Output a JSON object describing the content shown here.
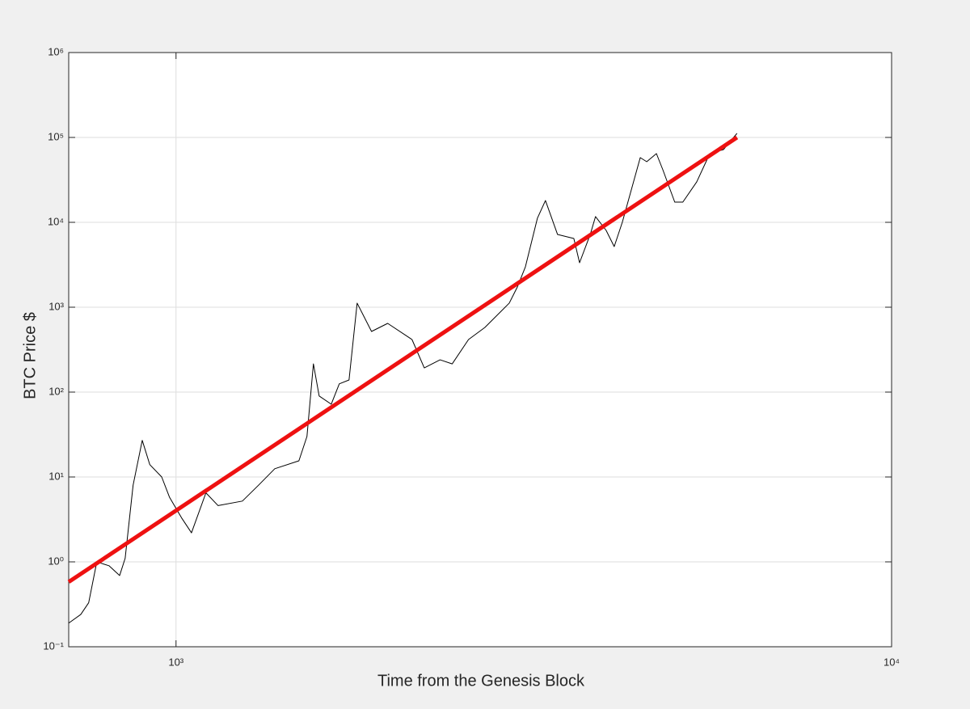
{
  "chart_data": {
    "type": "line",
    "xlabel": "Time from the Genesis Block",
    "ylabel": "BTC Price $",
    "xscale": "log",
    "yscale": "log",
    "grid": true,
    "xlim": [
      708,
      10000
    ],
    "ylim": [
      0.1,
      1000000
    ],
    "xticks": [
      {
        "value": 1000,
        "label": "10³"
      },
      {
        "value": 10000,
        "label": "10⁴"
      }
    ],
    "yticks": [
      {
        "value": 0.1,
        "label": "10⁻¹"
      },
      {
        "value": 1,
        "label": "10⁰"
      },
      {
        "value": 10,
        "label": "10¹"
      },
      {
        "value": 100,
        "label": "10²"
      },
      {
        "value": 1000,
        "label": "10³"
      },
      {
        "value": 10000,
        "label": "10⁴"
      },
      {
        "value": 100000,
        "label": "10⁵"
      },
      {
        "value": 1000000,
        "label": "10⁶"
      }
    ],
    "series": [
      {
        "color": "#000000",
        "x": [
          708,
          736,
          755,
          775,
          806,
          834,
          849,
          871,
          897,
          919,
          955,
          979,
          1018,
          1051,
          1101,
          1145,
          1238,
          1304,
          1374,
          1485,
          1524,
          1556,
          1585,
          1648,
          1691,
          1745,
          1791,
          1876,
          1976,
          2137,
          2223,
          2339,
          2432,
          2563,
          2702,
          2922,
          2999,
          3078,
          3199,
          3283,
          3413,
          3597,
          3664,
          3792,
          3857,
          3991,
          4096,
          4204,
          4454,
          4548,
          4692,
          4790,
          4977,
          5108,
          5341,
          5571,
          5823,
          6081
        ],
        "values": [
          0.19,
          0.24,
          0.33,
          1.0,
          0.9,
          0.69,
          1.1,
          8.0,
          27,
          14,
          10,
          5.8,
          3.3,
          2.2,
          6.5,
          4.6,
          5.2,
          8.0,
          12.5,
          15.5,
          30,
          215,
          90,
          72,
          125,
          139,
          1117,
          518,
          645,
          416,
          193,
          240,
          215,
          416,
          578,
          1117,
          1730,
          2990,
          11170,
          18070,
          7200,
          6450,
          3340,
          7200,
          11680,
          8030,
          5180,
          10000,
          57800,
          51800,
          64500,
          41600,
          17300,
          17300,
          29900,
          64500,
          72000,
          111700
        ]
      },
      {
        "color": "#ee1111",
        "x": [
          708,
          6081
        ],
        "values": [
          0.58,
          100000
        ]
      }
    ]
  }
}
